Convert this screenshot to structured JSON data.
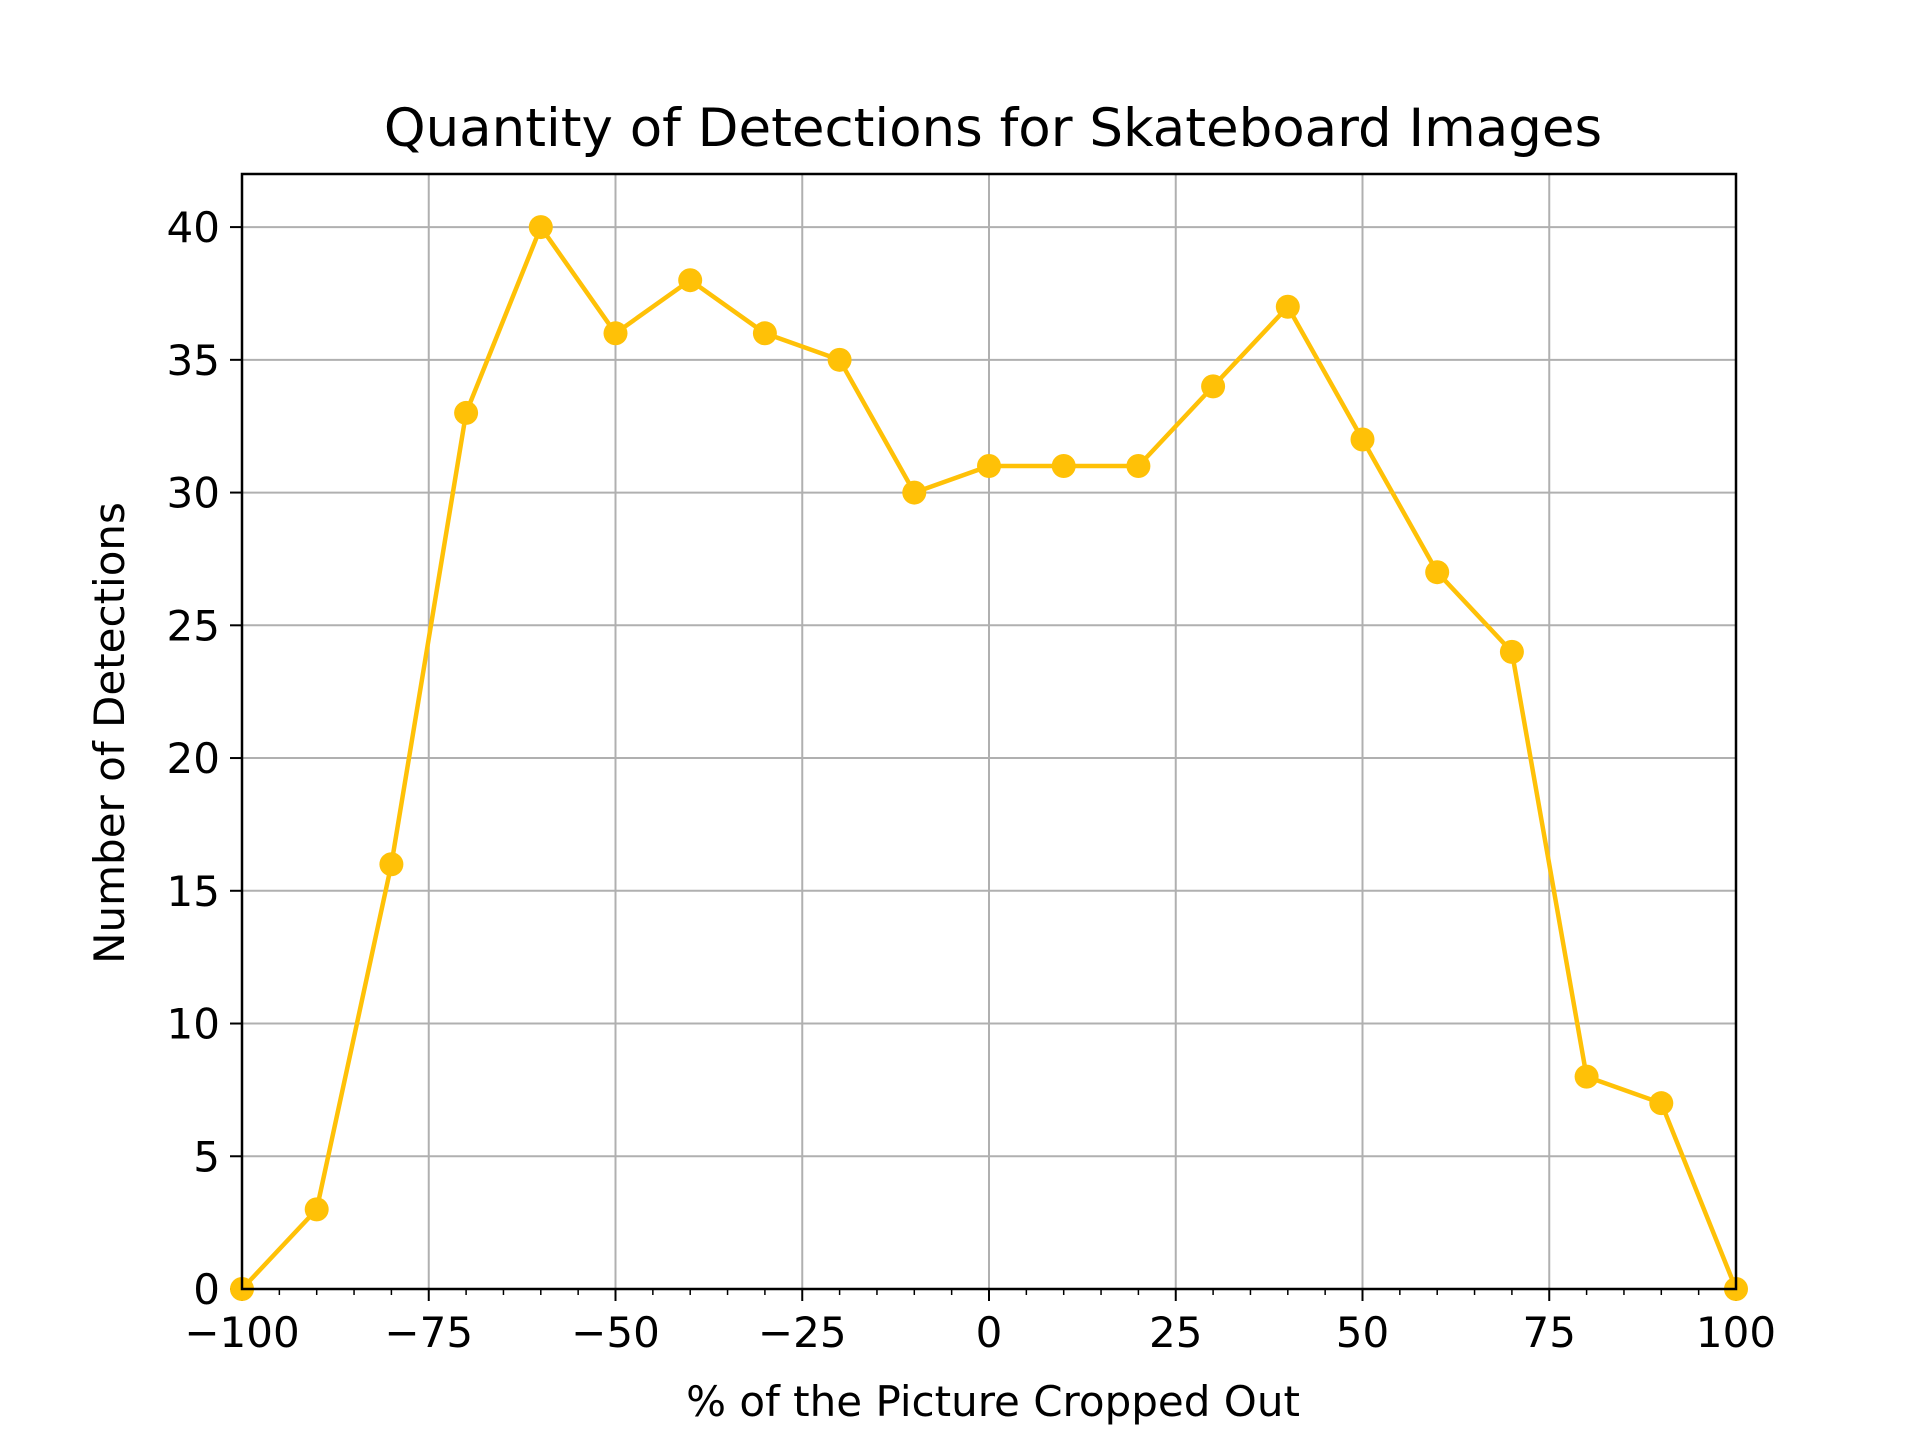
{
  "chart_data": {
    "type": "line",
    "title": "Quantity of Detections for Skateboard Images",
    "xlabel": "% of the Picture Cropped Out",
    "ylabel": "Number of Detections",
    "xlim": [
      -100,
      100
    ],
    "ylim": [
      0,
      42
    ],
    "grid": true,
    "x_ticks": [
      -100,
      -75,
      -50,
      -25,
      0,
      25,
      50,
      75,
      100
    ],
    "x_tick_labels": [
      "−100",
      "−75",
      "−50",
      "−25",
      "0",
      "25",
      "50",
      "75",
      "100"
    ],
    "y_ticks": [
      0,
      5,
      10,
      15,
      20,
      25,
      30,
      35,
      40
    ],
    "y_tick_labels": [
      "0",
      "5",
      "10",
      "15",
      "20",
      "25",
      "30",
      "35",
      "40"
    ],
    "series": [
      {
        "color": "#FFC107",
        "marker": "circle",
        "x": [
          -100,
          -90,
          -80,
          -70,
          -60,
          -50,
          -40,
          -30,
          -20,
          -10,
          0,
          10,
          20,
          30,
          40,
          50,
          60,
          70,
          80,
          90,
          100
        ],
        "y": [
          0,
          3,
          16,
          33,
          40,
          36,
          38,
          36,
          35,
          30,
          31,
          31,
          31,
          34,
          37,
          32,
          27,
          24,
          8,
          7,
          0
        ]
      }
    ]
  }
}
